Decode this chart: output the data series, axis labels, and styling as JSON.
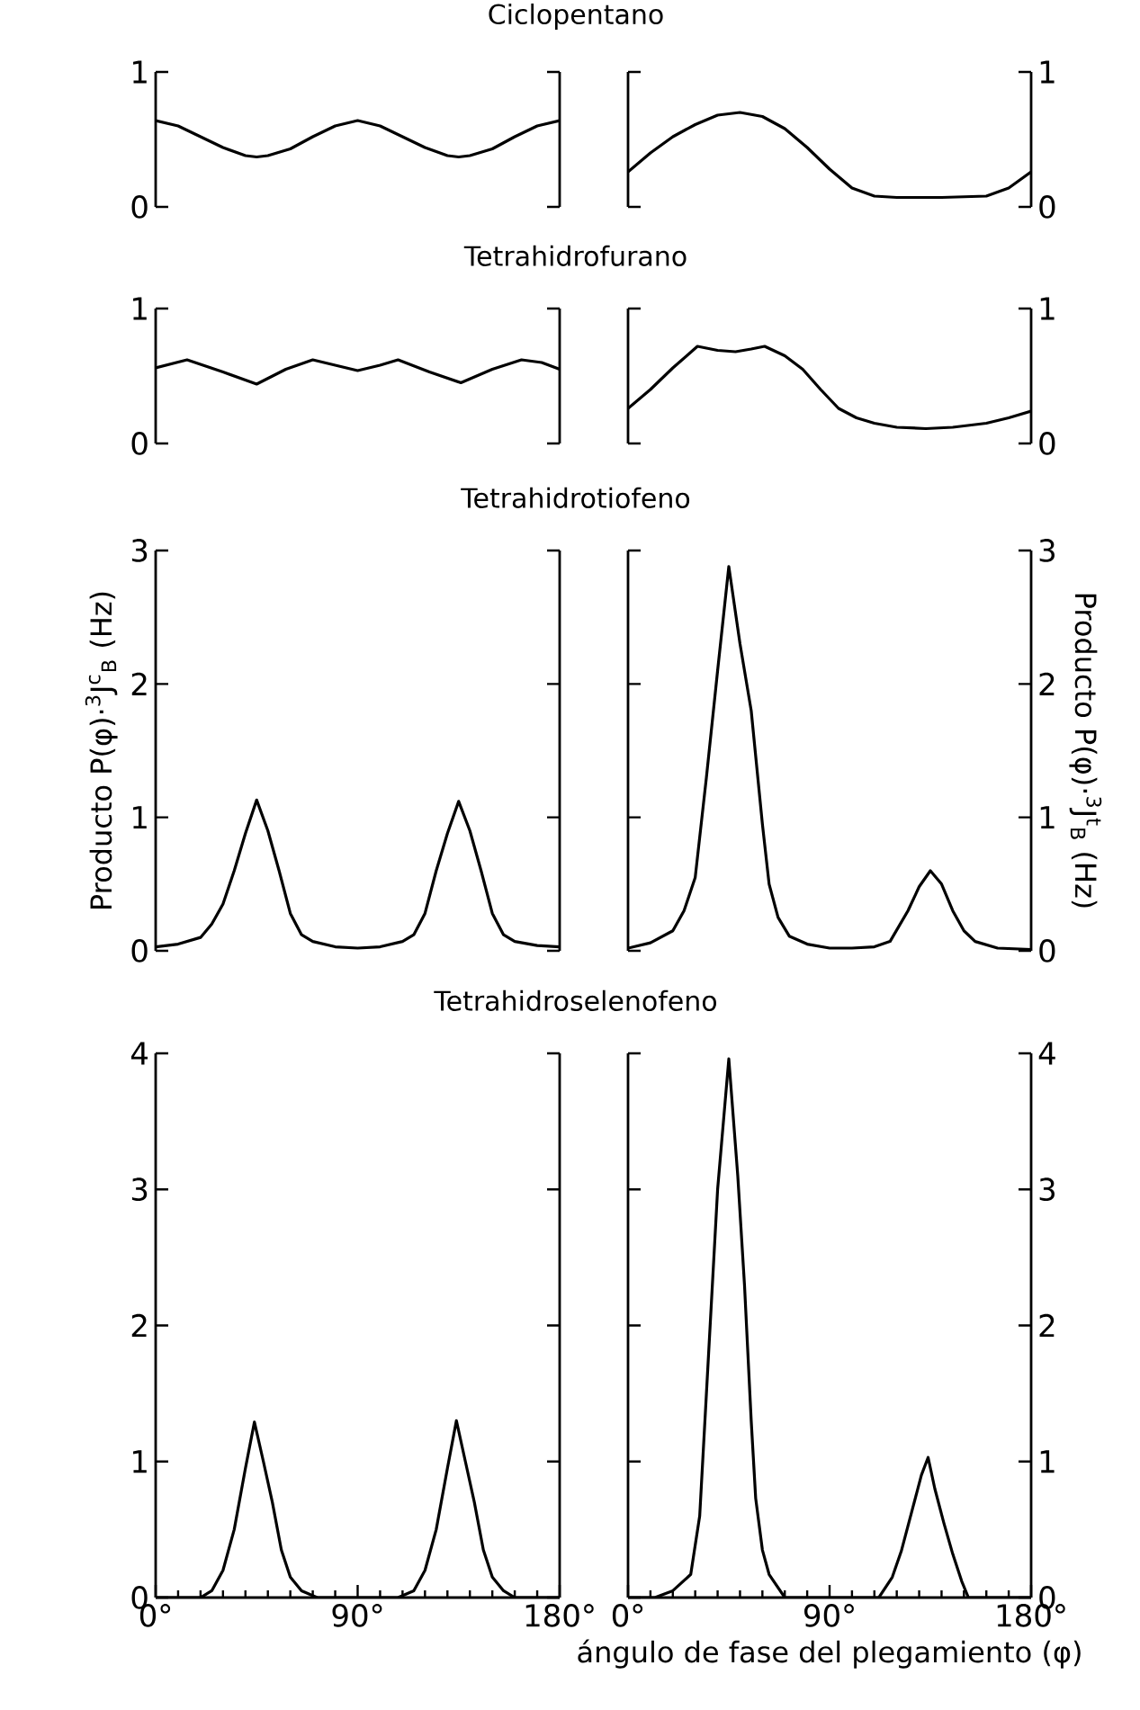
{
  "chart_data": [
    {
      "type": "line",
      "title": "Ciclopentano",
      "color": "#000000",
      "xlim": [
        0,
        180
      ],
      "ylim": [
        0,
        1
      ],
      "yticks": [
        0,
        1
      ],
      "tick_labels": "y",
      "x": [
        0,
        10,
        20,
        30,
        40,
        45,
        50,
        60,
        70,
        80,
        90,
        100,
        110,
        120,
        130,
        135,
        140,
        150,
        160,
        170,
        180
      ],
      "values": [
        0.64,
        0.6,
        0.52,
        0.44,
        0.38,
        0.37,
        0.38,
        0.43,
        0.52,
        0.6,
        0.64,
        0.6,
        0.52,
        0.44,
        0.38,
        0.37,
        0.38,
        0.43,
        0.52,
        0.6,
        0.64
      ]
    },
    {
      "type": "line",
      "color": "#000000",
      "xlim": [
        0,
        180
      ],
      "ylim": [
        0,
        1
      ],
      "yticks": [
        0,
        1
      ],
      "tick_labels": "y",
      "x": [
        0,
        10,
        20,
        30,
        40,
        50,
        60,
        70,
        80,
        90,
        100,
        110,
        120,
        140,
        160,
        170,
        180
      ],
      "values": [
        0.26,
        0.4,
        0.52,
        0.61,
        0.68,
        0.7,
        0.67,
        0.58,
        0.44,
        0.28,
        0.14,
        0.08,
        0.07,
        0.07,
        0.08,
        0.14,
        0.26
      ]
    },
    {
      "type": "line",
      "title": "Tetrahidrofurano",
      "color": "#000000",
      "xlim": [
        0,
        180
      ],
      "ylim": [
        0,
        1
      ],
      "yticks": [
        0,
        1
      ],
      "tick_labels": "y",
      "x": [
        0,
        14,
        30,
        45,
        58,
        70,
        80,
        90,
        100,
        108,
        122,
        136,
        150,
        163,
        172,
        180
      ],
      "values": [
        0.56,
        0.62,
        0.53,
        0.44,
        0.55,
        0.62,
        0.58,
        0.54,
        0.58,
        0.62,
        0.53,
        0.45,
        0.55,
        0.62,
        0.6,
        0.55
      ]
    },
    {
      "type": "line",
      "color": "#000000",
      "xlim": [
        0,
        180
      ],
      "ylim": [
        0,
        1
      ],
      "yticks": [
        0,
        1
      ],
      "tick_labels": "y",
      "x": [
        0,
        10,
        20,
        31,
        40,
        48,
        55,
        61,
        70,
        78,
        86,
        94,
        102,
        110,
        120,
        133,
        145,
        160,
        170,
        180
      ],
      "values": [
        0.26,
        0.4,
        0.56,
        0.72,
        0.69,
        0.68,
        0.7,
        0.72,
        0.65,
        0.55,
        0.4,
        0.26,
        0.19,
        0.15,
        0.12,
        0.11,
        0.12,
        0.15,
        0.19,
        0.24
      ]
    },
    {
      "type": "line",
      "title": "Tetrahidrotiofeno",
      "ylabel": "Producto  P(φ)·$^{3}$J$^{c}$$_{B}$ (Hz)",
      "color": "#000000",
      "xlim": [
        0,
        180
      ],
      "ylim": [
        0,
        3
      ],
      "yticks": [
        0,
        1,
        2,
        3
      ],
      "tick_labels": "y",
      "x": [
        0,
        10,
        20,
        25,
        30,
        35,
        40,
        45,
        50,
        55,
        60,
        65,
        70,
        80,
        90,
        100,
        110,
        115,
        120,
        125,
        130,
        135,
        140,
        145,
        150,
        155,
        160,
        170,
        180
      ],
      "values": [
        0.03,
        0.05,
        0.1,
        0.2,
        0.35,
        0.6,
        0.88,
        1.13,
        0.9,
        0.6,
        0.28,
        0.12,
        0.07,
        0.03,
        0.02,
        0.03,
        0.07,
        0.12,
        0.28,
        0.6,
        0.88,
        1.12,
        0.9,
        0.6,
        0.28,
        0.12,
        0.07,
        0.04,
        0.03
      ]
    },
    {
      "type": "line",
      "ylabel": "Producto  P(φ)·$^{3}$J$^{t}$$_{B}$ (Hz)",
      "color": "#000000",
      "xlim": [
        0,
        180
      ],
      "ylim": [
        0,
        3
      ],
      "yticks": [
        0,
        1,
        2,
        3
      ],
      "tick_labels": "y",
      "x": [
        0,
        10,
        20,
        25,
        30,
        35,
        40,
        45,
        50,
        55,
        60,
        63,
        67,
        72,
        80,
        90,
        100,
        110,
        117,
        125,
        130,
        135,
        140,
        145,
        150,
        155,
        165,
        180
      ],
      "values": [
        0.02,
        0.06,
        0.15,
        0.3,
        0.55,
        1.3,
        2.1,
        2.88,
        2.3,
        1.8,
        0.95,
        0.5,
        0.25,
        0.11,
        0.05,
        0.02,
        0.02,
        0.03,
        0.07,
        0.3,
        0.48,
        0.6,
        0.5,
        0.3,
        0.15,
        0.07,
        0.02,
        0.01
      ]
    },
    {
      "type": "line",
      "title": "Tetrahidroselenofeno",
      "color": "#000000",
      "xlim": [
        0,
        180
      ],
      "ylim": [
        0,
        4
      ],
      "yticks": [
        0,
        1,
        2,
        3,
        4
      ],
      "xticks": [
        {
          "value": 0,
          "label": "0°"
        },
        {
          "value": 90,
          "label": "90°"
        },
        {
          "value": 180,
          "label": "180°"
        }
      ],
      "x": [
        0,
        20,
        25,
        30,
        35,
        40,
        44,
        48,
        52,
        56,
        60,
        65,
        72,
        108,
        115,
        120,
        125,
        130,
        134,
        138,
        142,
        146,
        150,
        155,
        160,
        180
      ],
      "values": [
        0,
        0,
        0.05,
        0.2,
        0.5,
        0.95,
        1.29,
        1.0,
        0.7,
        0.35,
        0.15,
        0.05,
        0,
        0,
        0.05,
        0.2,
        0.5,
        0.95,
        1.3,
        1.0,
        0.7,
        0.35,
        0.15,
        0.05,
        0,
        0
      ]
    },
    {
      "type": "line",
      "xlabel": "ángulo de fase del plegamiento (φ)",
      "color": "#000000",
      "xlim": [
        0,
        180
      ],
      "ylim": [
        0,
        4
      ],
      "yticks": [
        0,
        1,
        2,
        3,
        4
      ],
      "xticks": [
        {
          "value": 0,
          "label": "0°"
        },
        {
          "value": 90,
          "label": "90°"
        },
        {
          "value": 180,
          "label": "180°"
        }
      ],
      "x": [
        0,
        12,
        20,
        28,
        32,
        35,
        40,
        45,
        49,
        52,
        55,
        57,
        60,
        63,
        70,
        112,
        118,
        122,
        127,
        131,
        134,
        137,
        141,
        145,
        149,
        152,
        180
      ],
      "values": [
        0,
        0,
        0.05,
        0.17,
        0.6,
        1.5,
        3.0,
        3.96,
        3.1,
        2.3,
        1.3,
        0.73,
        0.35,
        0.17,
        0,
        0,
        0.15,
        0.34,
        0.65,
        0.9,
        1.03,
        0.8,
        0.55,
        0.32,
        0.12,
        0,
        0
      ]
    }
  ]
}
